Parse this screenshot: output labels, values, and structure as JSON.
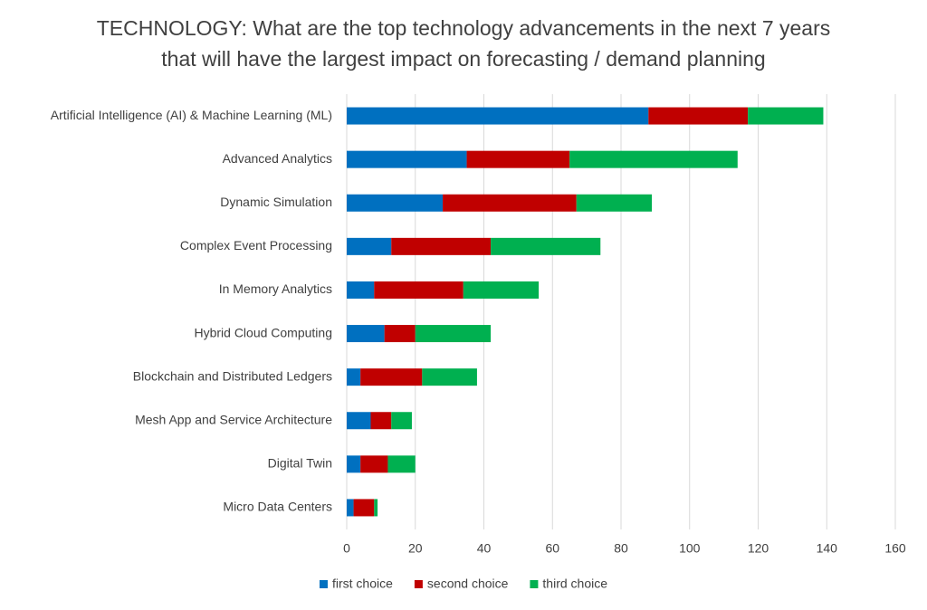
{
  "chart_data": {
    "type": "stacked-bar-horizontal",
    "title": "TECHNOLOGY: What are the top technology advancements in the next 7 years that will have the largest impact on forecasting / demand planning",
    "categories": [
      "Artificial Intelligence (AI) & Machine Learning (ML)",
      "Advanced Analytics",
      "Dynamic Simulation",
      "Complex Event Processing",
      "In Memory Analytics",
      "Hybrid Cloud Computing",
      "Blockchain and Distributed Ledgers",
      "Mesh App and Service Architecture",
      "Digital Twin",
      "Micro Data Centers"
    ],
    "series": [
      {
        "name": "first choice",
        "color": "#0070c0",
        "values": [
          88,
          35,
          28,
          13,
          8,
          11,
          4,
          7,
          4,
          2
        ]
      },
      {
        "name": "second choice",
        "color": "#c00000",
        "values": [
          29,
          30,
          39,
          29,
          26,
          9,
          18,
          6,
          8,
          6
        ]
      },
      {
        "name": "third choice",
        "color": "#00b050",
        "values": [
          22,
          49,
          22,
          32,
          22,
          22,
          16,
          6,
          8,
          1
        ]
      }
    ],
    "xlim": [
      0,
      160
    ],
    "xticks": [
      0,
      20,
      40,
      60,
      80,
      100,
      120,
      140,
      160
    ],
    "grid": true,
    "legend": "bottom"
  }
}
